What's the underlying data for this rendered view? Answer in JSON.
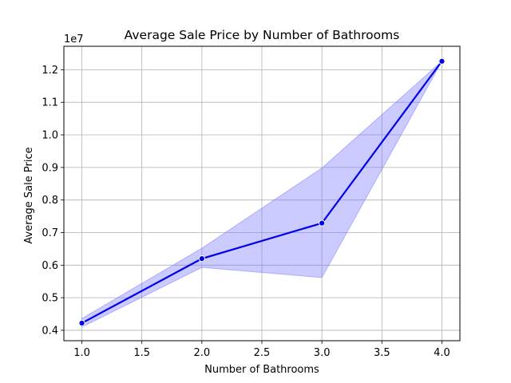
{
  "chart_data": {
    "type": "line",
    "title": "Average Sale Price by Number of Bathrooms",
    "xlabel": "Number of Bathrooms",
    "ylabel": "Average Sale Price",
    "y_offset_label": "1e7",
    "xlim": [
      0.85,
      4.15
    ],
    "ylim": [
      3.68,
      12.72
    ],
    "x_ticks": [
      1.0,
      1.5,
      2.0,
      2.5,
      3.0,
      3.5,
      4.0
    ],
    "x_tick_labels": [
      "1.0",
      "1.5",
      "2.0",
      "2.5",
      "3.0",
      "3.5",
      "4.0"
    ],
    "y_ticks": [
      4,
      5,
      6,
      7,
      8,
      9,
      10,
      11,
      12
    ],
    "y_tick_labels": [
      "0.4",
      "0.5",
      "0.6",
      "0.7",
      "0.8",
      "0.9",
      "1.0",
      "1.1",
      "1.2"
    ],
    "grid": true,
    "line_color": "#0000ee",
    "band_color": "#7777ff",
    "series": [
      {
        "x": [
          1.0,
          2.0,
          3.0,
          4.0
        ],
        "y": [
          4.22,
          6.2,
          7.29,
          12.26
        ],
        "ci_low": [
          4.1,
          5.93,
          5.62,
          12.26
        ],
        "ci_high": [
          4.36,
          6.52,
          8.98,
          12.26
        ]
      }
    ]
  }
}
